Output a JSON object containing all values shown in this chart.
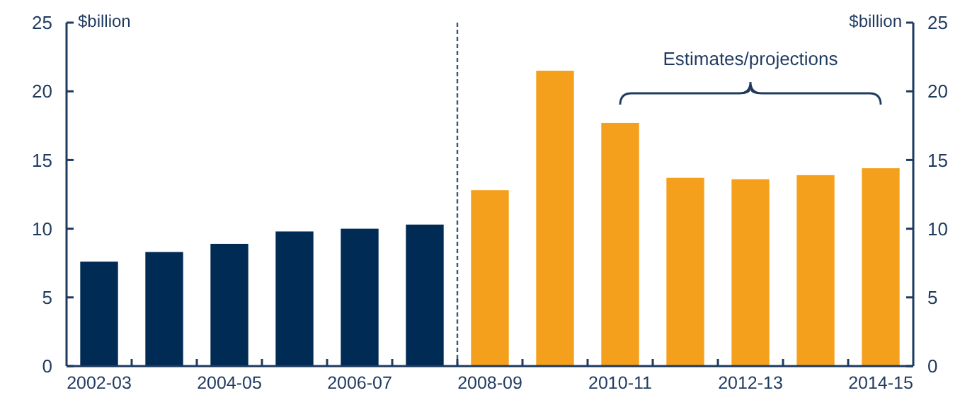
{
  "chart_data": {
    "type": "bar",
    "categories": [
      "2002-03",
      null,
      "2004-05",
      null,
      "2006-07",
      null,
      "2008-09",
      null,
      "2010-11",
      null,
      "2012-13",
      null,
      "2014-15"
    ],
    "values": [
      7.6,
      8.3,
      8.9,
      9.8,
      10.0,
      10.3,
      12.8,
      21.5,
      17.7,
      13.7,
      13.6,
      13.9,
      14.4
    ],
    "colors": [
      "#002b54",
      "#002b54",
      "#002b54",
      "#002b54",
      "#002b54",
      "#002b54",
      "#f5a01c",
      "#f5a01c",
      "#f5a01c",
      "#f5a01c",
      "#f5a01c",
      "#f5a01c",
      "#f5a01c"
    ],
    "ylabel": "$billion",
    "y2label": "$billion",
    "ylim": [
      0,
      25
    ],
    "yticks": [
      0,
      5,
      10,
      15,
      20,
      25
    ],
    "y2lim": [
      0,
      25
    ],
    "y2ticks": [
      0,
      5,
      10,
      15,
      20,
      25
    ],
    "annotations": [
      "Estimates/projections"
    ],
    "grid": false
  }
}
